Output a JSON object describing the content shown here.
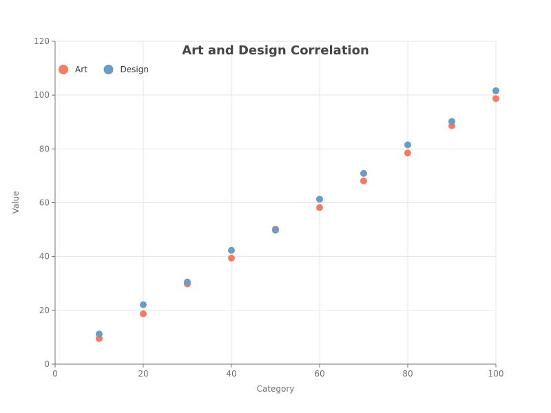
{
  "chart_data": {
    "type": "scatter",
    "title": "Art and Design Correlation",
    "xlabel": "Category",
    "ylabel": "Value",
    "xlim": [
      0,
      100
    ],
    "ylim": [
      0,
      120
    ],
    "x_ticks": [
      0,
      20,
      40,
      60,
      80,
      100
    ],
    "y_ticks": [
      0,
      20,
      40,
      60,
      80,
      100,
      120
    ],
    "grid": true,
    "legend_position": "top-left",
    "series": [
      {
        "name": "Art",
        "color": "#f47c64",
        "points": [
          [
            10,
            9.5
          ],
          [
            20,
            18.7
          ],
          [
            30,
            29.8
          ],
          [
            40,
            39.4
          ],
          [
            50,
            50.2
          ],
          [
            60,
            58.2
          ],
          [
            70,
            68.1
          ],
          [
            80,
            78.5
          ],
          [
            90,
            88.6
          ],
          [
            100,
            98.7
          ]
        ]
      },
      {
        "name": "Design",
        "color": "#6c9bc3",
        "points": [
          [
            10,
            11.2
          ],
          [
            20,
            22.1
          ],
          [
            30,
            30.5
          ],
          [
            40,
            42.3
          ],
          [
            50,
            49.8
          ],
          [
            60,
            61.3
          ],
          [
            70,
            70.9
          ],
          [
            80,
            81.5
          ],
          [
            90,
            90.2
          ],
          [
            100,
            101.6
          ]
        ]
      }
    ]
  }
}
